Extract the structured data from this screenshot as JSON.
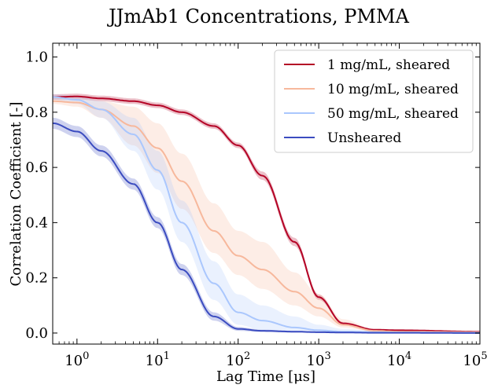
{
  "chart_data": {
    "type": "line",
    "title": "JJmAb1 Concentrations, PMMA",
    "xlabel": "Lag Time [μs]",
    "ylabel": "Correlation Coefficient [-]",
    "x_scale": "log",
    "xlim": [
      0.5,
      100000
    ],
    "ylim": [
      -0.04,
      1.05
    ],
    "x_ticks": [
      {
        "value": 1,
        "label": "10",
        "exp": "0"
      },
      {
        "value": 10,
        "label": "10",
        "exp": "1"
      },
      {
        "value": 100,
        "label": "10",
        "exp": "2"
      },
      {
        "value": 1000,
        "label": "10",
        "exp": "3"
      },
      {
        "value": 10000,
        "label": "10",
        "exp": "4"
      },
      {
        "value": 100000,
        "label": "10",
        "exp": "5"
      }
    ],
    "y_ticks": [
      {
        "value": 0.0,
        "label": "0.0"
      },
      {
        "value": 0.2,
        "label": "0.2"
      },
      {
        "value": 0.4,
        "label": "0.4"
      },
      {
        "value": 0.6,
        "label": "0.6"
      },
      {
        "value": 0.8,
        "label": "0.8"
      },
      {
        "value": 1.0,
        "label": "1.0"
      }
    ],
    "grid": false,
    "legend_position": "top-right",
    "x": [
      0.5,
      1,
      2,
      5,
      10,
      20,
      50,
      100,
      200,
      500,
      1000,
      2000,
      5000,
      10000,
      100000
    ],
    "series": [
      {
        "name": "1 mg/mL, sheared",
        "color": "#b40426",
        "band_color": "#b40426",
        "values": [
          0.855,
          0.857,
          0.85,
          0.84,
          0.825,
          0.8,
          0.75,
          0.68,
          0.57,
          0.33,
          0.13,
          0.035,
          0.012,
          0.01,
          0.005
        ],
        "lower": [
          0.845,
          0.847,
          0.84,
          0.83,
          0.815,
          0.79,
          0.74,
          0.67,
          0.555,
          0.315,
          0.12,
          0.03,
          0.01,
          0.008,
          0.004
        ],
        "upper": [
          0.865,
          0.867,
          0.86,
          0.85,
          0.835,
          0.81,
          0.76,
          0.69,
          0.585,
          0.345,
          0.14,
          0.04,
          0.014,
          0.012,
          0.006
        ]
      },
      {
        "name": "10 mg/mL, sheared",
        "color": "#f7b89c",
        "band_color": "#f7b89c",
        "values": [
          0.84,
          0.835,
          0.81,
          0.75,
          0.67,
          0.55,
          0.37,
          0.28,
          0.23,
          0.15,
          0.09,
          0.03,
          0.008,
          0.005,
          0.003
        ],
        "lower": [
          0.83,
          0.82,
          0.78,
          0.68,
          0.58,
          0.45,
          0.29,
          0.21,
          0.16,
          0.1,
          0.06,
          0.02,
          0.005,
          0.003,
          0.002
        ],
        "upper": [
          0.85,
          0.85,
          0.84,
          0.82,
          0.76,
          0.65,
          0.47,
          0.37,
          0.33,
          0.22,
          0.14,
          0.05,
          0.012,
          0.008,
          0.005
        ]
      },
      {
        "name": "50 mg/mL, sheared",
        "color": "#aac7fd",
        "band_color": "#aac7fd",
        "values": [
          0.855,
          0.845,
          0.81,
          0.72,
          0.59,
          0.4,
          0.18,
          0.075,
          0.045,
          0.02,
          0.01,
          0.005,
          0.003,
          0.002,
          0.001
        ],
        "lower": [
          0.845,
          0.83,
          0.78,
          0.66,
          0.52,
          0.33,
          0.12,
          0.03,
          0.01,
          0.005,
          0.003,
          0.002,
          0.001,
          0.001,
          0.0
        ],
        "upper": [
          0.865,
          0.86,
          0.84,
          0.78,
          0.66,
          0.48,
          0.26,
          0.14,
          0.1,
          0.06,
          0.03,
          0.015,
          0.008,
          0.005,
          0.003
        ]
      },
      {
        "name": "Unsheared",
        "color": "#3b4cc0",
        "band_color": "#3b4cc0",
        "values": [
          0.76,
          0.73,
          0.66,
          0.54,
          0.4,
          0.23,
          0.06,
          0.015,
          0.008,
          0.005,
          0.003,
          0.002,
          0.001,
          0.001,
          0.0
        ],
        "lower": [
          0.74,
          0.71,
          0.64,
          0.52,
          0.38,
          0.21,
          0.045,
          0.008,
          0.004,
          0.002,
          0.001,
          0.001,
          0.0,
          0.0,
          0.0
        ],
        "upper": [
          0.78,
          0.75,
          0.68,
          0.56,
          0.42,
          0.25,
          0.075,
          0.022,
          0.012,
          0.008,
          0.005,
          0.003,
          0.002,
          0.002,
          0.001
        ]
      }
    ]
  }
}
